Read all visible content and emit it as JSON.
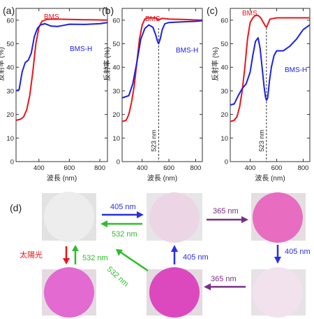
{
  "chart_data": [
    {
      "type": "line",
      "panel_label": "(a)",
      "xlabel": "波長 (nm)",
      "ylabel": "反射率 (%)",
      "xlim": [
        250,
        850
      ],
      "ylim": [
        0,
        65
      ],
      "xticks": [
        400,
        600,
        800
      ],
      "yticks": [
        0,
        10,
        20,
        30,
        40,
        50,
        60
      ],
      "grid": false,
      "series": [
        {
          "name": "BMS",
          "color": "#e8141a",
          "x": [
            250,
            280,
            300,
            320,
            340,
            360,
            380,
            400,
            420,
            450,
            500,
            600,
            700,
            800,
            850
          ],
          "y": [
            17.5,
            18,
            19,
            22,
            28,
            38,
            50,
            57,
            59.5,
            60.3,
            60.5,
            60.3,
            60.2,
            60.1,
            60
          ]
        },
        {
          "name": "BMS-H",
          "color": "#1a22e0",
          "x": [
            250,
            270,
            290,
            310,
            330,
            350,
            370,
            390,
            410,
            440,
            480,
            520,
            560,
            600,
            700,
            800,
            850
          ],
          "y": [
            30,
            30.5,
            38,
            42,
            43,
            46,
            53,
            56.5,
            58,
            58.5,
            57.5,
            57.3,
            57.8,
            58.3,
            58.2,
            58.5,
            59
          ]
        }
      ],
      "annotations": []
    },
    {
      "type": "line",
      "panel_label": "(b)",
      "xlabel": "波長 (nm)",
      "ylabel": "反射率 (%)",
      "xlim": [
        250,
        850
      ],
      "ylim": [
        0,
        65
      ],
      "xticks": [
        400,
        600,
        800
      ],
      "yticks": [
        0,
        10,
        20,
        30,
        40,
        50,
        60
      ],
      "grid": false,
      "series": [
        {
          "name": "BMS",
          "color": "#e8141a",
          "x": [
            250,
            280,
            300,
            320,
            340,
            360,
            380,
            400,
            420,
            440,
            500,
            520,
            550,
            600,
            700,
            800,
            850
          ],
          "y": [
            17,
            17.5,
            20,
            25,
            32,
            42,
            52,
            58,
            60.5,
            61,
            61,
            60,
            60.8,
            60.5,
            60.3,
            60.1,
            60
          ]
        },
        {
          "name": "BMS-H",
          "color": "#1a22e0",
          "x": [
            250,
            300,
            330,
            360,
            390,
            420,
            450,
            480,
            500,
            515,
            523,
            535,
            550,
            570,
            600,
            700,
            800,
            850
          ],
          "y": [
            27,
            28,
            33,
            42,
            52,
            56.5,
            58,
            57,
            54,
            51,
            50,
            52,
            56,
            58.5,
            59,
            59.3,
            59.5,
            59.8
          ]
        }
      ],
      "annotations": [
        {
          "text": "523 nm",
          "x": 523
        }
      ]
    },
    {
      "type": "line",
      "panel_label": "(c)",
      "xlabel": "波長 (nm)",
      "ylabel": "反射率 (%)",
      "xlim": [
        250,
        850
      ],
      "ylim": [
        0,
        65
      ],
      "xticks": [
        400,
        600,
        800
      ],
      "yticks": [
        0,
        10,
        20,
        30,
        40,
        50,
        60
      ],
      "grid": false,
      "series": [
        {
          "name": "BMS",
          "color": "#e8141a",
          "x": [
            250,
            280,
            300,
            320,
            340,
            360,
            380,
            400,
            420,
            440,
            460,
            480,
            500,
            515,
            523,
            535,
            550,
            600,
            700,
            800,
            850
          ],
          "y": [
            17,
            17.5,
            19,
            23,
            30,
            40,
            52,
            59,
            61,
            62,
            62,
            61,
            59,
            57.5,
            57,
            58.5,
            60.5,
            61,
            61,
            61,
            61
          ]
        },
        {
          "name": "BMS-H",
          "color": "#1a22e0",
          "x": [
            250,
            280,
            310,
            340,
            370,
            400,
            420,
            440,
            460,
            475,
            490,
            505,
            515,
            523,
            532,
            545,
            560,
            580,
            600,
            650,
            700,
            750,
            800,
            850
          ],
          "y": [
            24,
            24.5,
            28,
            31,
            33,
            38,
            45,
            51,
            52.5,
            48,
            40,
            32,
            27.5,
            26,
            27,
            34,
            40,
            45,
            47,
            47,
            49,
            52,
            56,
            58
          ]
        }
      ],
      "annotations": [
        {
          "text": "523 nm",
          "x": 523
        }
      ]
    }
  ],
  "panel_d": {
    "label": "(d)",
    "arrows": [
      {
        "id": "a1",
        "label": "405 nm",
        "color": "#2a2fe0"
      },
      {
        "id": "a2",
        "label": "532 nm",
        "color": "#2ebd2a"
      },
      {
        "id": "a3",
        "label": "365 nm",
        "color": "#7a2d86"
      },
      {
        "id": "a4",
        "label": "太陽光",
        "color": "#e8141a"
      },
      {
        "id": "a5",
        "label": "532 nm",
        "color": "#2ebd2a"
      },
      {
        "id": "a6",
        "label": "532 nm",
        "color": "#2ebd2a"
      },
      {
        "id": "a7",
        "label": "405 nm",
        "color": "#2a2fe0"
      },
      {
        "id": "a8",
        "label": "405 nm",
        "color": "#2a2fe0"
      },
      {
        "id": "a9",
        "label": "365 nm",
        "color": "#7a2d86"
      }
    ],
    "disks": [
      {
        "id": "d1",
        "color": "#ededed"
      },
      {
        "id": "d2",
        "color": "#ecd6e6"
      },
      {
        "id": "d3",
        "color": "#e86cc0"
      },
      {
        "id": "d4",
        "color": "#e36ad0"
      },
      {
        "id": "d5",
        "color": "#dc49be"
      },
      {
        "id": "d6",
        "color": "#f1e2ee"
      }
    ]
  }
}
